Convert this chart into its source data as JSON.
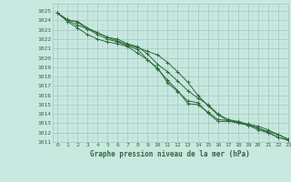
{
  "title": "Graphe pression niveau de la mer (hPa)",
  "bg_color": "#c8e8e0",
  "grid_major_color": "#a0c8c0",
  "grid_minor_color": "#b8ddd6",
  "line_color": "#2d6b3a",
  "xlim": [
    -0.5,
    23
  ],
  "ylim": [
    1011,
    1025.8
  ],
  "xticks": [
    0,
    1,
    2,
    3,
    4,
    5,
    6,
    7,
    8,
    9,
    10,
    11,
    12,
    13,
    14,
    15,
    16,
    17,
    18,
    19,
    20,
    21,
    22,
    23
  ],
  "yticks": [
    1011,
    1012,
    1013,
    1014,
    1015,
    1016,
    1017,
    1018,
    1019,
    1020,
    1021,
    1022,
    1023,
    1024,
    1025
  ],
  "series": [
    [
      1024.8,
      1024.1,
      1023.8,
      1023.1,
      1022.7,
      1022.2,
      1021.8,
      1021.4,
      1021.1,
      1020.7,
      1020.3,
      1019.5,
      1018.5,
      1017.4,
      1016.0,
      1014.9,
      1013.9,
      1013.3,
      1013.0,
      1012.8,
      1012.5,
      1012.1,
      1011.8,
      1011.3
    ],
    [
      1024.8,
      1023.9,
      1023.2,
      1022.5,
      1022.0,
      1021.7,
      1021.5,
      1021.2,
      1020.5,
      1019.8,
      1018.8,
      1017.6,
      1016.5,
      1015.1,
      1015.0,
      1014.2,
      1013.4,
      1013.3,
      1013.1,
      1012.9,
      1012.5,
      1012.0,
      1011.5,
      1011.2
    ],
    [
      1024.8,
      1024.0,
      1023.5,
      1023.1,
      1022.5,
      1022.0,
      1021.7,
      1021.3,
      1020.9,
      1019.8,
      1018.9,
      1017.3,
      1016.4,
      1015.4,
      1015.2,
      1014.1,
      1013.2,
      1013.2,
      1013.1,
      1012.8,
      1012.3,
      1012.0,
      1011.5,
      1011.2
    ],
    [
      1024.8,
      1024.0,
      1023.9,
      1023.2,
      1022.7,
      1022.2,
      1022.0,
      1021.5,
      1021.2,
      1020.4,
      1019.3,
      1018.5,
      1017.5,
      1016.5,
      1015.7,
      1015.0,
      1014.0,
      1013.4,
      1013.2,
      1012.9,
      1012.7,
      1012.3,
      1011.8,
      1011.3
    ]
  ]
}
